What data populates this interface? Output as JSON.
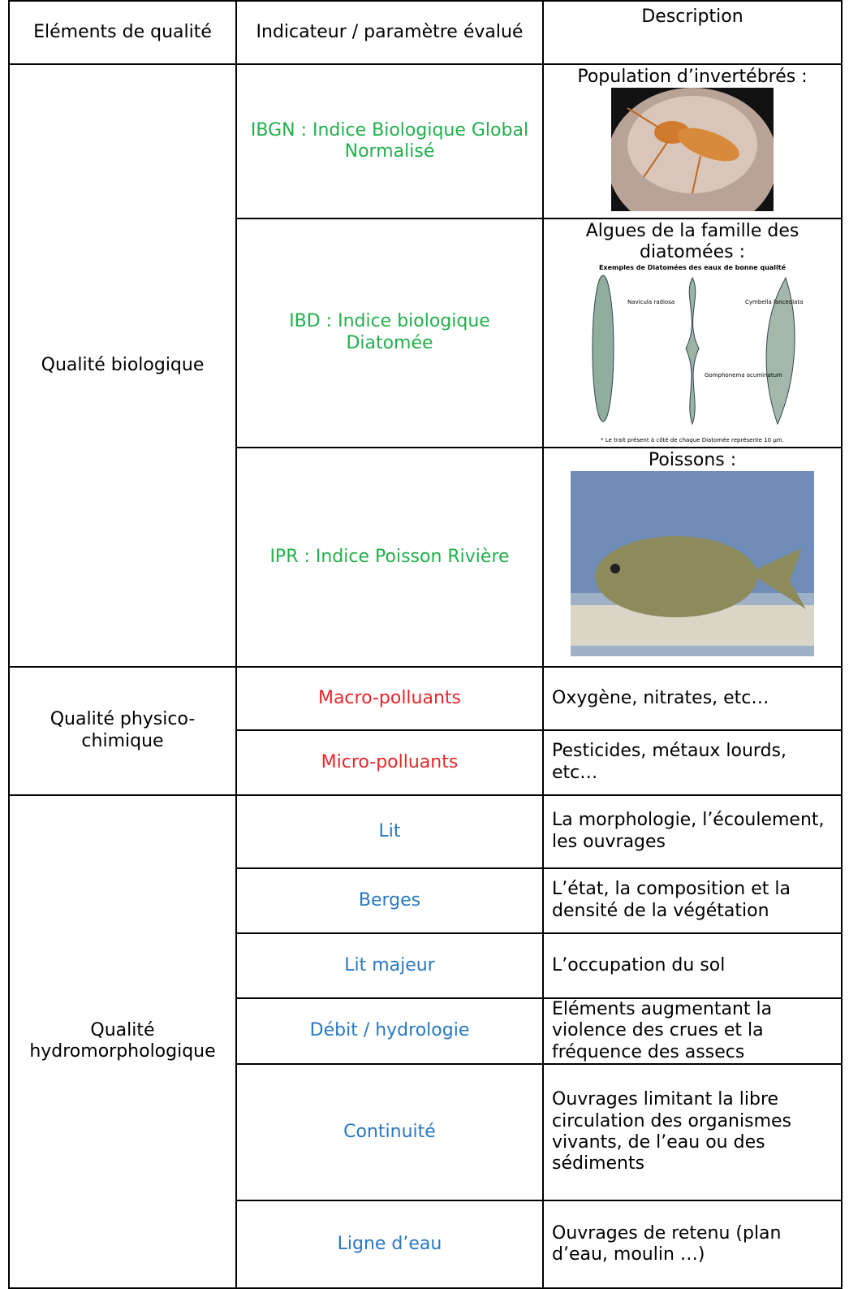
{
  "table": {
    "header": [
      "Eléments de qualité",
      "Indicateur / paramètre évalué",
      "Description"
    ],
    "groups": [
      {
        "label": "Qualité biologique",
        "rows": [
          {
            "indicator": "IBGN : Indice Biologique Global Normalisé",
            "description": "Population d’invertébrés :"
          },
          {
            "indicator": "IBD : Indice biologique Diatomée",
            "description": "Algues de la famille des diatomées :",
            "figure": {
              "title": "Exemples de Diatomées des eaux de bonne qualité",
              "labels": [
                "Navicula radiosa",
                "Gomphonema acuminatum",
                "Cymbella lanceolata"
              ],
              "note": "* Le trait présent à côté de chaque Diatomée représente 10 µm."
            }
          },
          {
            "indicator": "IPR : Indice Poisson Rivière",
            "description": "Poissons :"
          }
        ]
      },
      {
        "label": "Qualité physico-chimique",
        "rows": [
          {
            "indicator": "Macro-polluants",
            "description": "Oxygène, nitrates, etc…"
          },
          {
            "indicator": "Micro-polluants",
            "description": "Pesticides, métaux lourds, etc…"
          }
        ]
      },
      {
        "label": "Qualité hydromorphologique",
        "rows": [
          {
            "indicator": "Lit",
            "description": "La morphologie, l’écoulement, les ouvrages"
          },
          {
            "indicator": "Berges",
            "description": "L’état, la composition et la densité de la végétation"
          },
          {
            "indicator": "Lit majeur",
            "description": "L’occupation du sol"
          },
          {
            "indicator": "Débit / hydrologie",
            "description": "Eléments augmentant la violence des crues et la fréquence des assecs"
          },
          {
            "indicator": "Continuité",
            "description": "Ouvrages limitant la libre circulation des organismes vivants, de l’eau ou des sédiments"
          },
          {
            "indicator": "Ligne d’eau",
            "description": "Ouvrages de retenu (plan d’eau, moulin …)"
          }
        ]
      }
    ]
  }
}
